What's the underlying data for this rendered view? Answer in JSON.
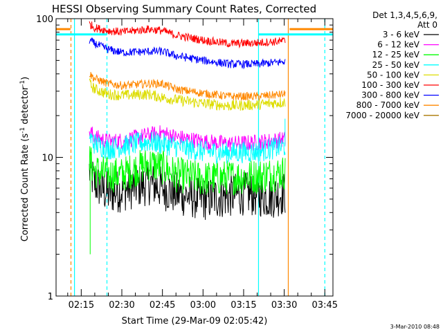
{
  "chart_data": {
    "type": "line",
    "title": "HESSI Observing Summary Count Rates, Corrected",
    "xlabel": "Start Time (29-Mar-09 02:05:42)",
    "ylabel_main": "Corrected Count Rate (s",
    "ylabel_sup1": "-1",
    "ylabel_mid": " detector",
    "ylabel_sup2": "-1",
    "ylabel_end": ")",
    "timestamp": "3-Mar-2010 08:48",
    "y_scale": "log",
    "ylim": [
      1,
      100
    ],
    "y_ticks": [
      "1",
      "10",
      "100"
    ],
    "x_ticks": [
      "02:15",
      "02:30",
      "02:45",
      "03:00",
      "03:15",
      "03:30",
      "03:45"
    ],
    "x_tick_minutes": [
      15,
      30,
      45,
      60,
      75,
      90,
      105
    ],
    "xlim_minutes": [
      5.7,
      108
    ],
    "legend_header": [
      "Det 1,3,4,5,6,9,",
      "Att 0"
    ],
    "legend_placement": "top-right outside plot",
    "data_start_min": 18,
    "data_end_min": 90.5,
    "series": [
      {
        "name": "3 - 6 keV",
        "color": "#000000",
        "noise": 0.16,
        "points": [
          [
            18,
            8
          ],
          [
            20,
            6.5
          ],
          [
            25,
            5.5
          ],
          [
            30,
            5.8
          ],
          [
            40,
            6.5
          ],
          [
            45,
            6.0
          ],
          [
            50,
            5.5
          ],
          [
            60,
            5.0
          ],
          [
            70,
            5.3
          ],
          [
            75,
            5.5
          ],
          [
            85,
            5.2
          ],
          [
            90,
            5.5
          ]
        ]
      },
      {
        "name": "6 - 12 keV",
        "color": "#ff00ff",
        "noise": 0.06,
        "points": [
          [
            18,
            15.5
          ],
          [
            20,
            14
          ],
          [
            25,
            13
          ],
          [
            30,
            13.2
          ],
          [
            40,
            14.5
          ],
          [
            45,
            15
          ],
          [
            50,
            14
          ],
          [
            60,
            13
          ],
          [
            70,
            12.5
          ],
          [
            80,
            12.8
          ],
          [
            90,
            13.5
          ]
        ]
      },
      {
        "name": "12 - 25 keV",
        "color": "#00ff00",
        "noise": 0.13,
        "points": [
          [
            18,
            9.5
          ],
          [
            20,
            8
          ],
          [
            25,
            7.5
          ],
          [
            30,
            7.5
          ],
          [
            40,
            9
          ],
          [
            45,
            8.5
          ],
          [
            50,
            7.5
          ],
          [
            60,
            7
          ],
          [
            70,
            7.2
          ],
          [
            80,
            7.3
          ],
          [
            90,
            7.8
          ]
        ]
      },
      {
        "name": "25 - 50 keV",
        "color": "#00ffff",
        "noise": 0.08,
        "points": [
          [
            18,
            14
          ],
          [
            20,
            12.5
          ],
          [
            25,
            11.5
          ],
          [
            30,
            12
          ],
          [
            40,
            13
          ],
          [
            45,
            12.5
          ],
          [
            50,
            12
          ],
          [
            60,
            11
          ],
          [
            70,
            10.8
          ],
          [
            80,
            11
          ],
          [
            90,
            12
          ]
        ]
      },
      {
        "name": "50 - 100 keV",
        "color": "#dddd00",
        "noise": 0.04,
        "points": [
          [
            18,
            34
          ],
          [
            20,
            31
          ],
          [
            25,
            28.5
          ],
          [
            30,
            28
          ],
          [
            40,
            28.5
          ],
          [
            45,
            27
          ],
          [
            50,
            26
          ],
          [
            60,
            24.5
          ],
          [
            70,
            23.5
          ],
          [
            80,
            24
          ],
          [
            90,
            25
          ]
        ]
      },
      {
        "name": "100 - 300 keV",
        "color": "#ff0000",
        "noise": 0.03,
        "points": [
          [
            18,
            92
          ],
          [
            20,
            86
          ],
          [
            25,
            82
          ],
          [
            30,
            80
          ],
          [
            40,
            84
          ],
          [
            45,
            82
          ],
          [
            50,
            76
          ],
          [
            60,
            70
          ],
          [
            70,
            66
          ],
          [
            80,
            67
          ],
          [
            90,
            69
          ]
        ]
      },
      {
        "name": "300 - 800 keV",
        "color": "#0000ff",
        "noise": 0.03,
        "points": [
          [
            18,
            70
          ],
          [
            20,
            66
          ],
          [
            25,
            60
          ],
          [
            30,
            57
          ],
          [
            40,
            58
          ],
          [
            45,
            58
          ],
          [
            50,
            54
          ],
          [
            60,
            50
          ],
          [
            70,
            47
          ],
          [
            80,
            47
          ],
          [
            90,
            49
          ]
        ]
      },
      {
        "name": "800 - 7000 keV",
        "color": "#ff8800",
        "noise": 0.03,
        "points": [
          [
            18,
            40
          ],
          [
            20,
            37
          ],
          [
            25,
            34
          ],
          [
            30,
            33
          ],
          [
            40,
            34
          ],
          [
            45,
            34
          ],
          [
            50,
            31
          ],
          [
            60,
            29
          ],
          [
            70,
            27.5
          ],
          [
            80,
            27.5
          ],
          [
            90,
            28.5
          ]
        ]
      },
      {
        "name": "7000 - 20000 keV",
        "color": "#aa7700",
        "noise": 0,
        "points": []
      }
    ],
    "orange_bars": [
      [
        5.7,
        11
      ],
      [
        92,
        108
      ]
    ],
    "orange_bar_value": 84,
    "cyan_bars": [
      [
        5.7,
        24.5
      ],
      [
        80.5,
        108
      ]
    ],
    "cyan_bar_value": 77,
    "vertical_markers": [
      {
        "minute": 11.2,
        "color": "#ff8800",
        "style": "dashed"
      },
      {
        "minute": 12.5,
        "color": "#00ffff",
        "style": "solid"
      },
      {
        "minute": 24.5,
        "color": "#00ffff",
        "style": "dashed"
      },
      {
        "minute": 80.5,
        "color": "#00ffff",
        "style": "solid"
      },
      {
        "minute": 91.5,
        "color": "#ff8800",
        "style": "solid"
      },
      {
        "minute": 105,
        "color": "#00ffff",
        "style": "dashed"
      }
    ]
  }
}
